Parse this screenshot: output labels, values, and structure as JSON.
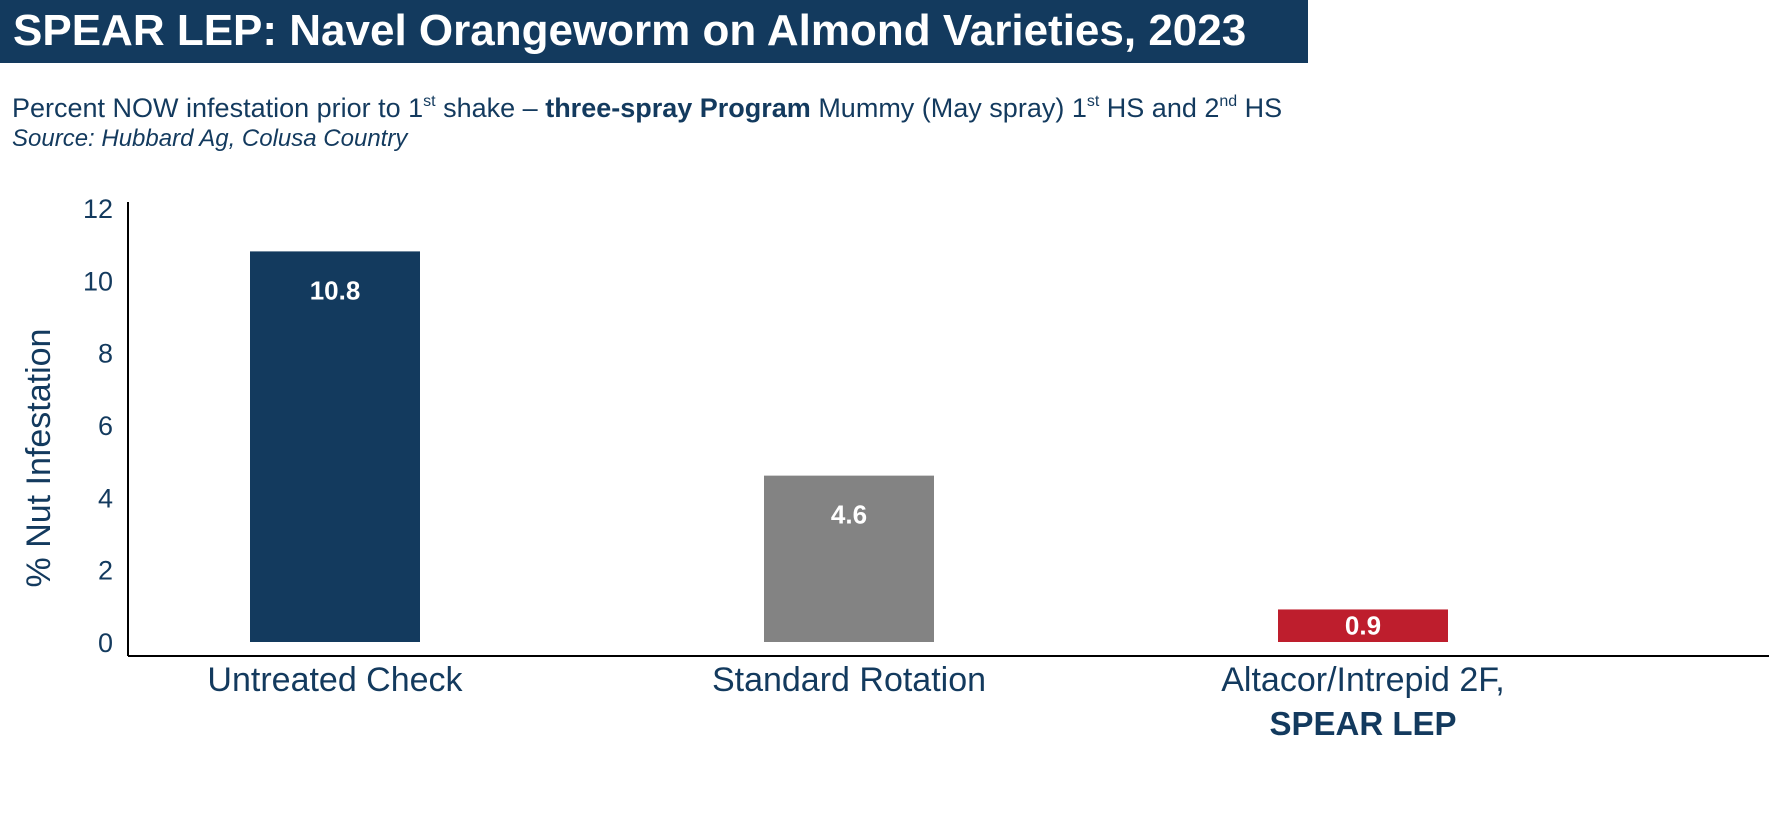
{
  "header": {
    "title": "SPEAR LEP: Navel Orangeworm on Almond Varieties, 2023"
  },
  "subtitle": {
    "part1": "Percent NOW infestation prior to 1",
    "sup1": "st",
    "part2": " shake – ",
    "bold": "three-spray Program",
    "part3": " Mummy (May spray) 1",
    "sup2": "st",
    "part4": " HS and 2",
    "sup3": "nd",
    "part5": " HS",
    "source": "Source: Hubbard Ag, Colusa Country"
  },
  "colors": {
    "navy": "#133a5e",
    "gray": "#838383",
    "red": "#be1e2d"
  },
  "chart_data": {
    "type": "bar",
    "categories": [
      "Untreated Check",
      "Standard Rotation",
      "Altacor/Intrepid 2F, SPEAR LEP"
    ],
    "category_lines": [
      [
        {
          "text": "Untreated Check",
          "bold": false
        }
      ],
      [
        {
          "text": "Standard Rotation",
          "bold": false
        }
      ],
      [
        {
          "text": "Altacor/Intrepid 2F,",
          "bold": false
        },
        {
          "text": "SPEAR LEP",
          "bold": true
        }
      ]
    ],
    "values": [
      10.8,
      4.6,
      0.9
    ],
    "value_labels": [
      "10.8",
      "4.6",
      "0.9"
    ],
    "bar_colors": [
      "#133a5e",
      "#838383",
      "#be1e2d"
    ],
    "ylabel": "% Nut Infestation",
    "xlabel": "",
    "ylim": [
      0,
      12
    ],
    "yticks": [
      0,
      2,
      4,
      6,
      8,
      10,
      12
    ],
    "grid": false,
    "legend": "none"
  }
}
